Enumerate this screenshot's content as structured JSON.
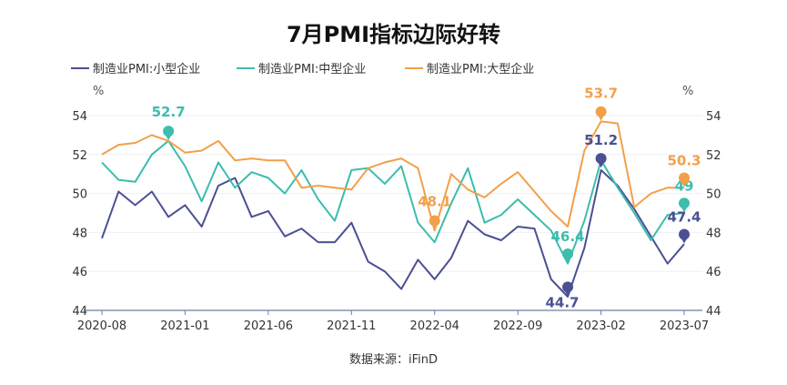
{
  "title": "7月PMI指标边际好转",
  "source": "数据来源：iFinD",
  "chart_data": {
    "type": "line",
    "title": "7月PMI指标边际好转",
    "left_unit": "%",
    "right_unit": "%",
    "ylim": [
      44,
      54
    ],
    "yticks": [
      44,
      46,
      48,
      50,
      52,
      54
    ],
    "xtick_labels": [
      "2020-08",
      "2021-01",
      "2021-06",
      "2021-11",
      "2022-04",
      "2022-09",
      "2023-02",
      "2023-07"
    ],
    "xtick_indices": [
      0,
      5,
      10,
      15,
      20,
      25,
      30,
      35
    ],
    "n_points": 36,
    "legend_position": "top-left",
    "series": [
      {
        "name": "制造业PMI:小型企业",
        "color": "#4a5092",
        "values": [
          47.7,
          50.1,
          49.4,
          50.1,
          48.8,
          49.4,
          48.3,
          50.4,
          50.8,
          48.8,
          49.1,
          47.8,
          48.2,
          47.5,
          47.5,
          48.5,
          46.5,
          46.0,
          45.1,
          46.6,
          45.6,
          46.7,
          48.6,
          47.9,
          47.6,
          48.3,
          48.2,
          45.6,
          44.7,
          47.2,
          51.2,
          50.4,
          49.2,
          47.8,
          46.4,
          47.4
        ],
        "annotations": [
          {
            "index": 28,
            "value": 45.2,
            "label": "44.7"
          },
          {
            "index": 30,
            "value": 51.8,
            "label": "51.2"
          },
          {
            "index": 35,
            "value": 47.9,
            "label": "47.4"
          }
        ]
      },
      {
        "name": "制造业PMI:中型企业",
        "color": "#3cbdae",
        "values": [
          51.6,
          50.7,
          50.6,
          52.0,
          52.7,
          51.4,
          49.6,
          51.6,
          50.3,
          51.1,
          50.8,
          50.0,
          51.2,
          49.7,
          48.6,
          51.2,
          51.3,
          50.5,
          51.4,
          48.5,
          47.5,
          49.5,
          51.3,
          48.5,
          48.9,
          49.7,
          48.9,
          48.1,
          46.4,
          48.6,
          51.7,
          50.3,
          49.0,
          47.6,
          48.9,
          49.0
        ],
        "annotations": [
          {
            "index": 4,
            "value": 53.2,
            "label": "52.7"
          },
          {
            "index": 28,
            "value": 46.9,
            "label": "46.4"
          },
          {
            "index": 35,
            "value": 49.5,
            "label": "49"
          }
        ]
      },
      {
        "name": "制造业PMI:大型企业",
        "color": "#f2a04a",
        "values": [
          52.0,
          52.5,
          52.6,
          53.0,
          52.7,
          52.1,
          52.2,
          52.7,
          51.7,
          51.8,
          51.7,
          51.7,
          50.3,
          50.4,
          50.3,
          50.2,
          51.3,
          51.6,
          51.8,
          51.3,
          48.1,
          51.0,
          50.2,
          49.8,
          50.5,
          51.1,
          50.1,
          49.1,
          48.3,
          52.2,
          53.7,
          53.6,
          49.3,
          50.0,
          50.3,
          50.3
        ],
        "annotations": [
          {
            "index": 20,
            "value": 48.6,
            "label": "48.1"
          },
          {
            "index": 30,
            "value": 54.2,
            "label": "53.7"
          },
          {
            "index": 35,
            "value": 50.8,
            "label": "50.3"
          }
        ]
      }
    ]
  }
}
